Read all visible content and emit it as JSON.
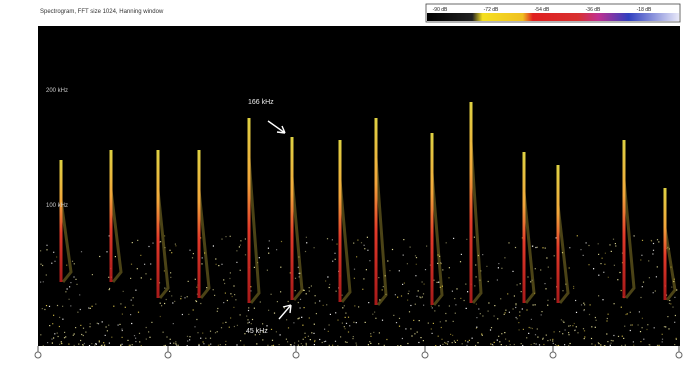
{
  "header": {
    "title": "Spectrogram, FFT size 1024, Hanning window"
  },
  "color_scale": {
    "labels": [
      "-90 dB",
      "-72 dB",
      "-54 dB",
      "-36 dB",
      "-18 dB"
    ]
  },
  "axis": {
    "labels": [
      "200 kHz",
      "100 kHz"
    ]
  },
  "annotations": [
    "166 kHz",
    "45 kHz"
  ]
}
